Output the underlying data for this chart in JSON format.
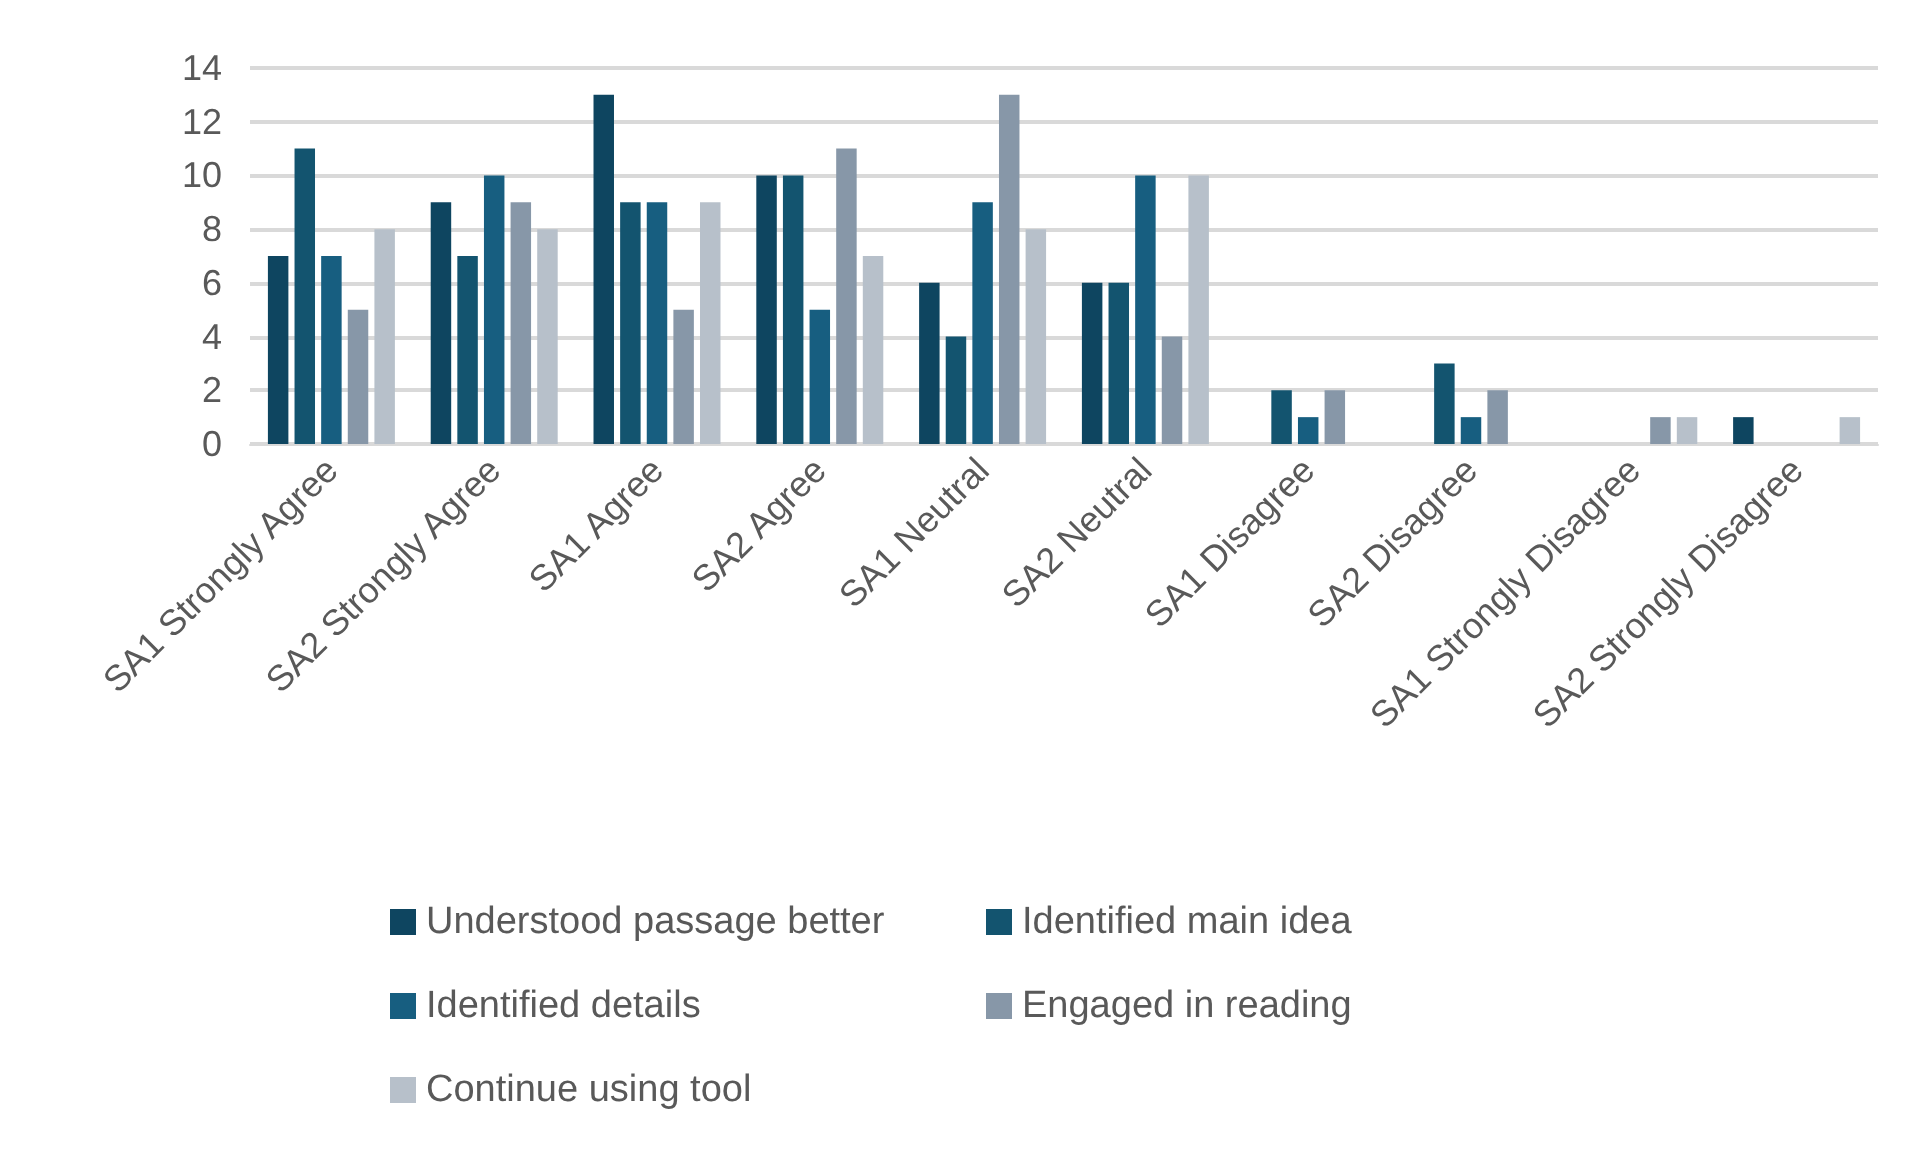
{
  "chart_data": {
    "type": "bar",
    "categories": [
      "SA1 Strongly Agree",
      "SA2 Strongly Agree",
      "SA1 Agree",
      "SA2 Agree",
      "SA1 Neutral",
      "SA2 Neutral",
      "SA1 Disagree",
      "SA2 Disagree",
      "SA1 Strongly Disagree",
      "SA2 Strongly Disagree"
    ],
    "series": [
      {
        "name": "Understood passage better",
        "color": "#0e4560",
        "values": [
          7,
          9,
          13,
          10,
          6,
          6,
          0,
          0,
          0,
          1
        ]
      },
      {
        "name": "Identified main idea",
        "color": "#13546f",
        "values": [
          11,
          7,
          9,
          10,
          4,
          6,
          2,
          3,
          0,
          0
        ]
      },
      {
        "name": "Identified details",
        "color": "#175e80",
        "values": [
          7,
          10,
          9,
          5,
          9,
          10,
          1,
          1,
          0,
          0
        ]
      },
      {
        "name": "Engaged in reading",
        "color": "#8797a8",
        "values": [
          5,
          9,
          5,
          11,
          13,
          4,
          2,
          2,
          1,
          0
        ]
      },
      {
        "name": "Continue using tool",
        "color": "#b7c0ca",
        "values": [
          8,
          8,
          9,
          7,
          8,
          10,
          0,
          0,
          1,
          1
        ]
      }
    ],
    "ylim": [
      0,
      14
    ],
    "yticks": [
      0,
      2,
      4,
      6,
      8,
      10,
      12,
      14
    ],
    "grid": "y",
    "legend": "bottom"
  }
}
